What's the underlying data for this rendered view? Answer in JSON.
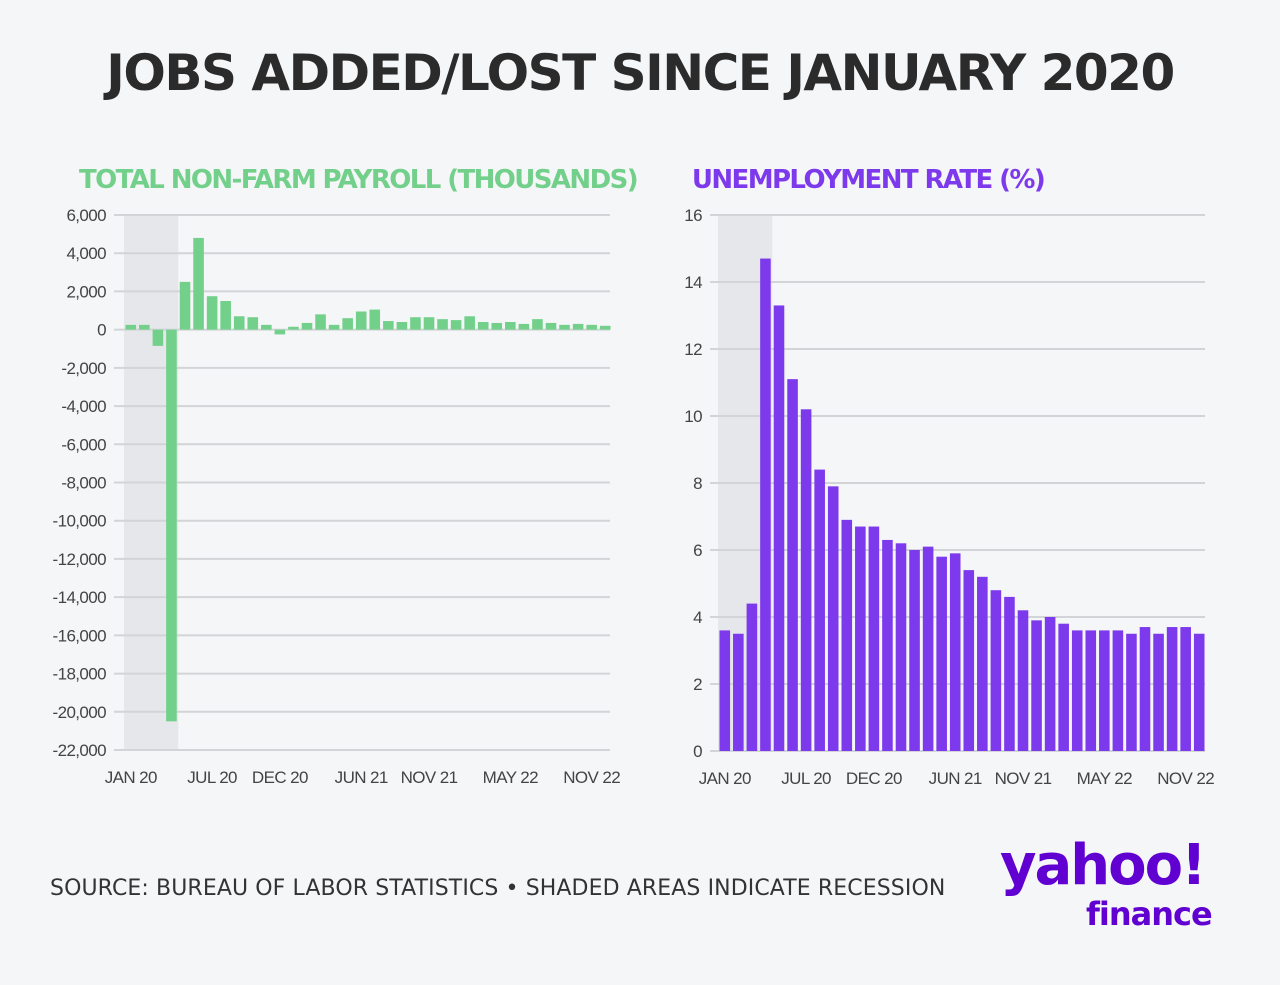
{
  "title": "JOBS ADDED/LOST SINCE JANUARY 2020",
  "colors": {
    "payroll": "#72d08b",
    "unemployment": "#7d39ec",
    "recession": "#e6e7ea",
    "logo": "#6001d2"
  },
  "chart_data": [
    {
      "type": "bar",
      "title": "TOTAL NON-FARM PAYROLL (THOUSANDS)",
      "xlabel": "",
      "ylabel": "",
      "ylim": [
        -22000,
        6000
      ],
      "yticks": [
        6000,
        4000,
        2000,
        0,
        -2000,
        -4000,
        -6000,
        -8000,
        -10000,
        -12000,
        -14000,
        -16000,
        -18000,
        -20000,
        -22000
      ],
      "ytick_labels": [
        "6,000",
        "4,000",
        "2,000",
        "0",
        "-2,000",
        "-4,000",
        "-6,000",
        "-8,000",
        "-10,000",
        "-12,000",
        "-14,000",
        "-16,000",
        "-18,000",
        "-20,000",
        "-22,000"
      ],
      "x_tick_labels": [
        "JAN 20",
        "JUL 20",
        "DEC 20",
        "JUN 21",
        "NOV 21",
        "MAY 22",
        "NOV 22"
      ],
      "x_tick_index": [
        0,
        6,
        11,
        17,
        22,
        28,
        34
      ],
      "recession": [
        0,
        3
      ],
      "categories": [
        "Jan 20",
        "Feb 20",
        "Mar 20",
        "Apr 20",
        "May 20",
        "Jun 20",
        "Jul 20",
        "Aug 20",
        "Sep 20",
        "Oct 20",
        "Nov 20",
        "Dec 20",
        "Jan 21",
        "Feb 21",
        "Mar 21",
        "Apr 21",
        "May 21",
        "Jun 21",
        "Jul 21",
        "Aug 21",
        "Sep 21",
        "Oct 21",
        "Nov 21",
        "Dec 21",
        "Jan 22",
        "Feb 22",
        "Mar 22",
        "Apr 22",
        "May 22",
        "Jun 22",
        "Jul 22",
        "Aug 22",
        "Sep 22",
        "Oct 22",
        "Nov 22",
        "Dec 22"
      ],
      "values": [
        250,
        250,
        -850,
        -20500,
        2500,
        4800,
        1750,
        1500,
        700,
        650,
        250,
        -250,
        150,
        350,
        800,
        250,
        600,
        950,
        1050,
        450,
        400,
        650,
        650,
        550,
        500,
        700,
        400,
        350,
        400,
        300,
        550,
        350,
        250,
        300,
        250,
        200
      ]
    },
    {
      "type": "bar",
      "title": "UNEMPLOYMENT RATE (%)",
      "xlabel": "",
      "ylabel": "",
      "ylim": [
        0,
        16
      ],
      "yticks": [
        16,
        14,
        12,
        10,
        8,
        6,
        4,
        2,
        0
      ],
      "ytick_labels": [
        "16",
        "14",
        "12",
        "10",
        "8",
        "6",
        "4",
        "2",
        "0"
      ],
      "x_tick_labels": [
        "JAN 20",
        "JUL 20",
        "DEC 20",
        "JUN 21",
        "NOV 21",
        "MAY 22",
        "NOV 22"
      ],
      "x_tick_index": [
        0,
        6,
        11,
        17,
        22,
        28,
        34
      ],
      "recession": [
        0,
        3
      ],
      "categories": [
        "Jan 20",
        "Feb 20",
        "Mar 20",
        "Apr 20",
        "May 20",
        "Jun 20",
        "Jul 20",
        "Aug 20",
        "Sep 20",
        "Oct 20",
        "Nov 20",
        "Dec 20",
        "Jan 21",
        "Feb 21",
        "Mar 21",
        "Apr 21",
        "May 21",
        "Jun 21",
        "Jul 21",
        "Aug 21",
        "Sep 21",
        "Oct 21",
        "Nov 21",
        "Dec 21",
        "Jan 22",
        "Feb 22",
        "Mar 22",
        "Apr 22",
        "May 22",
        "Jun 22",
        "Jul 22",
        "Aug 22",
        "Sep 22",
        "Oct 22",
        "Nov 22",
        "Dec 22"
      ],
      "values": [
        3.6,
        3.5,
        4.4,
        14.7,
        13.3,
        11.1,
        10.2,
        8.4,
        7.9,
        6.9,
        6.7,
        6.7,
        6.3,
        6.2,
        6.0,
        6.1,
        5.8,
        5.9,
        5.4,
        5.2,
        4.8,
        4.6,
        4.2,
        3.9,
        4.0,
        3.8,
        3.6,
        3.6,
        3.6,
        3.6,
        3.5,
        3.7,
        3.5,
        3.7,
        3.7,
        3.5
      ]
    }
  ],
  "footer": {
    "source": "SOURCE: BUREAU OF LABOR STATISTICS • SHADED AREAS INDICATE RECESSION",
    "logo_word": "yahoo!",
    "logo_sub": "finance"
  }
}
